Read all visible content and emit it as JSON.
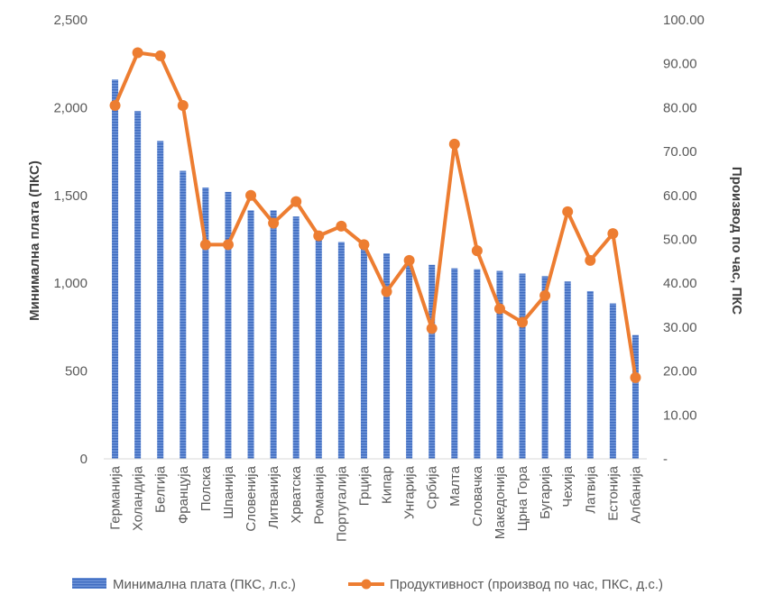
{
  "chart_data": {
    "type": "bar",
    "categories": [
      "Германија",
      "Холандија",
      "Белгија",
      "Француја",
      "Полска",
      "Шпанија",
      "Словенија",
      "Литванија",
      "Хрватска",
      "Романија",
      "Португалија",
      "Грција",
      "Кипар",
      "Унгарија",
      "Србија",
      "Малта",
      "Словачка",
      "Македонија",
      "Црна Гора",
      "Бугарија",
      "Чехија",
      "Латвија",
      "Естонија",
      "Албанија"
    ],
    "series": [
      {
        "name": "Минимална плата (ПКС, л.с.)",
        "type": "bar",
        "axis": "left",
        "color": "#4472C4",
        "values": [
          2160,
          1980,
          1810,
          1640,
          1545,
          1520,
          1415,
          1415,
          1380,
          1270,
          1235,
          1200,
          1170,
          1130,
          1105,
          1085,
          1080,
          1070,
          1055,
          1040,
          1010,
          955,
          885,
          705
        ]
      },
      {
        "name": "Продуктивност (производ по час, ПКС, д.с.)",
        "type": "line",
        "axis": "right",
        "color": "#ED7D31",
        "values": [
          80.5,
          92.5,
          91.8,
          80.5,
          48.8,
          48.8,
          60.0,
          53.7,
          58.6,
          50.8,
          53.0,
          48.8,
          38.1,
          45.2,
          29.7,
          71.7,
          47.4,
          34.2,
          31.1,
          37.2,
          56.3,
          45.2,
          51.3,
          18.5
        ]
      }
    ],
    "y_left": {
      "label": "Минимална плата (ПКС)",
      "ylim": [
        0,
        2500
      ],
      "ticks": [
        "0",
        "500",
        "1,000",
        "1,500",
        "2,000",
        "2,500"
      ]
    },
    "y_right": {
      "label": "Производ по час, ПКС",
      "ylim": [
        0,
        100
      ],
      "ticks": [
        "-",
        "10.00",
        "20.00",
        "30.00",
        "40.00",
        "50.00",
        "60.00",
        "70.00",
        "80.00",
        "90.00",
        "100.00"
      ]
    },
    "legend_position": "bottom",
    "grid": false
  }
}
